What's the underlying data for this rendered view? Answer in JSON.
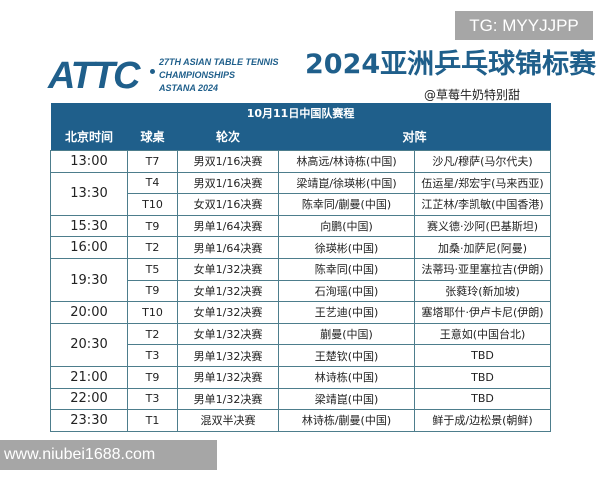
{
  "watermarks": {
    "top": "TG: MYYJJPP",
    "bottom": "www.niubei1688.com"
  },
  "header": {
    "logo": "ATTC",
    "subtitle_line1": "27TH ASIAN TABLE TENNIS",
    "subtitle_line2": "CHAMPIONSHIPS",
    "subtitle_line3": "ASTANA 2024",
    "title": "2024亚洲乒乓球锦标赛",
    "handle": "@草莓牛奶特别甜"
  },
  "colors": {
    "brand": "#1f5f8b"
  },
  "table": {
    "caption": "10月11日中国队赛程",
    "columns": [
      "北京时间",
      "球桌",
      "轮次",
      "对阵"
    ],
    "groups": [
      {
        "time": "13:00",
        "rows": [
          {
            "table": "T7",
            "round": "男双1/16决赛",
            "player": "林高远/林诗栋(中国)",
            "opponent": "沙凡/穆萨(马尔代夫)"
          }
        ]
      },
      {
        "time": "13:30",
        "rows": [
          {
            "table": "T4",
            "round": "男双1/16决赛",
            "player": "梁靖崑/徐瑛彬(中国)",
            "opponent": "伍运星/郑宏宇(马来西亚)"
          },
          {
            "table": "T10",
            "round": "女双1/16决赛",
            "player": "陈幸同/蒯曼(中国)",
            "opponent": "江芷林/李凯敏(中国香港)"
          }
        ]
      },
      {
        "time": "15:30",
        "rows": [
          {
            "table": "T9",
            "round": "男单1/64决赛",
            "player": "向鹏(中国)",
            "opponent": "赛义德·沙阿(巴基斯坦)"
          }
        ]
      },
      {
        "time": "16:00",
        "rows": [
          {
            "table": "T2",
            "round": "男单1/64决赛",
            "player": "徐瑛彬(中国)",
            "opponent": "加桑·加萨尼(阿曼)"
          }
        ]
      },
      {
        "time": "19:30",
        "rows": [
          {
            "table": "T5",
            "round": "女单1/32决赛",
            "player": "陈幸同(中国)",
            "opponent": "法蒂玛·亚里塞拉吉(伊朗)"
          },
          {
            "table": "T9",
            "round": "女单1/32决赛",
            "player": "石洵瑶(中国)",
            "opponent": "张蕤玲(新加坡)"
          }
        ]
      },
      {
        "time": "20:00",
        "rows": [
          {
            "table": "T10",
            "round": "女单1/32决赛",
            "player": "王艺迪(中国)",
            "opponent": "塞塔耶什·伊卢卡尼(伊朗)"
          }
        ]
      },
      {
        "time": "20:30",
        "rows": [
          {
            "table": "T2",
            "round": "女单1/32决赛",
            "player": "蒯曼(中国)",
            "opponent": "王意如(中国台北)"
          },
          {
            "table": "T3",
            "round": "男单1/32决赛",
            "player": "王楚钦(中国)",
            "opponent": "TBD"
          }
        ]
      },
      {
        "time": "21:00",
        "rows": [
          {
            "table": "T9",
            "round": "男单1/32决赛",
            "player": "林诗栋(中国)",
            "opponent": "TBD"
          }
        ]
      },
      {
        "time": "22:00",
        "rows": [
          {
            "table": "T3",
            "round": "男单1/32决赛",
            "player": "梁靖崑(中国)",
            "opponent": "TBD"
          }
        ]
      },
      {
        "time": "23:30",
        "rows": [
          {
            "table": "T1",
            "round": "混双半决赛",
            "player": "林诗栋/蒯曼(中国)",
            "opponent": "鲜于成/边松景(朝鲜)"
          }
        ]
      }
    ]
  }
}
